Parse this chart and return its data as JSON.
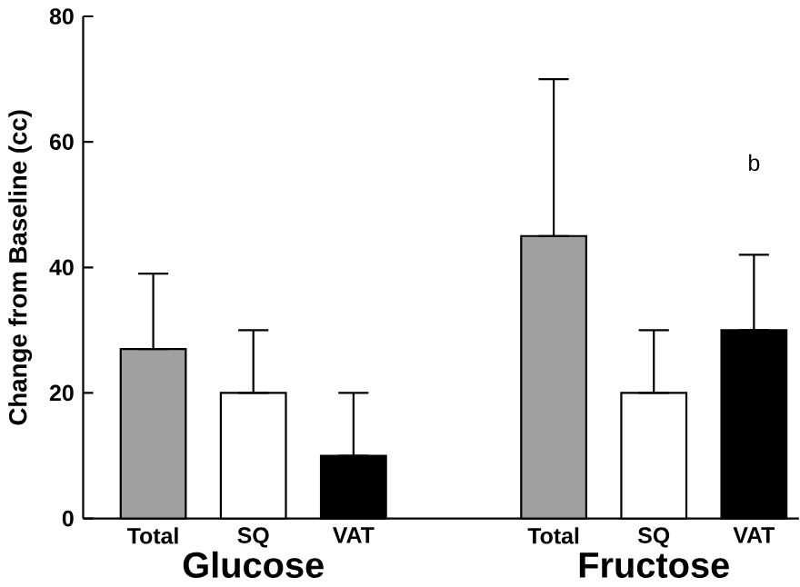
{
  "chart_data": {
    "type": "bar",
    "ylabel": "Change from Baseline (cc)",
    "categories": [
      "Total",
      "SQ",
      "VAT",
      "Total",
      "SQ",
      "VAT"
    ],
    "values": [
      27,
      20,
      10,
      45,
      20,
      30
    ],
    "colors": [
      "#a0a0a0",
      "#ffffff",
      "#000000",
      "#a0a0a0",
      "#ffffff",
      "#000000"
    ],
    "errors": [
      [
        27,
        39
      ],
      [
        20,
        30
      ],
      [
        10,
        20
      ],
      [
        45,
        70
      ],
      [
        20,
        30
      ],
      [
        30,
        42
      ]
    ],
    "ylim": [
      0,
      80
    ],
    "yticks": [
      0,
      20,
      40,
      60,
      80
    ],
    "grid": false,
    "annotations": [
      "Glucose",
      "Fructose",
      "b"
    ]
  }
}
